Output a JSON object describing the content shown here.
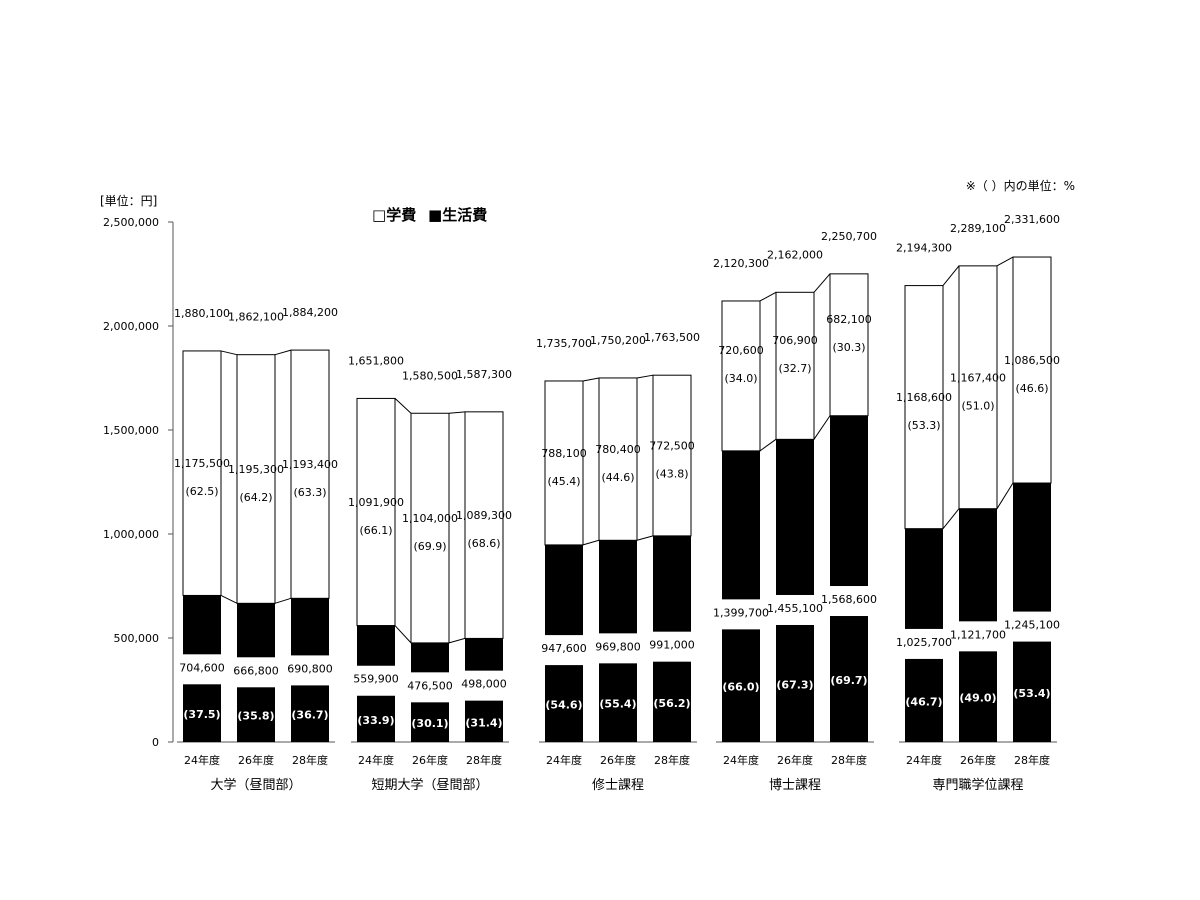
{
  "chart_data": {
    "type": "bar",
    "stacked": true,
    "unit_label": "[単位：円]",
    "percent_note": "※（ ）内の単位：%",
    "legend": {
      "placement": "top-center",
      "items": [
        {
          "name": "学費",
          "symbol": "□",
          "color": "#ffffff"
        },
        {
          "name": "生活費",
          "symbol": "■",
          "color": "#000000"
        }
      ]
    },
    "ylim": [
      0,
      2500000
    ],
    "yticks": [
      {
        "value": 0,
        "label": "0"
      },
      {
        "value": 500000,
        "label": "500,000"
      },
      {
        "value": 1000000,
        "label": "1,000,000"
      },
      {
        "value": 1500000,
        "label": "1,500,000"
      },
      {
        "value": 2000000,
        "label": "2,000,000"
      },
      {
        "value": 2500000,
        "label": "2,500,000"
      }
    ],
    "groups": [
      {
        "name": "大学（昼間部）",
        "bars": [
          {
            "year": "24年度",
            "total": 1880100,
            "total_label": "1,880,100",
            "tuition": 1175500,
            "tuition_label": "1,175,500",
            "tuition_pct": "(62.5)",
            "living": 704600,
            "living_label": "704,600",
            "living_pct": "(37.5)"
          },
          {
            "year": "26年度",
            "total": 1862100,
            "total_label": "1,862,100",
            "tuition": 1195300,
            "tuition_label": "1,195,300",
            "tuition_pct": "(64.2)",
            "living": 666800,
            "living_label": "666,800",
            "living_pct": "(35.8)"
          },
          {
            "year": "28年度",
            "total": 1884200,
            "total_label": "1,884,200",
            "tuition": 1193400,
            "tuition_label": "1,193,400",
            "tuition_pct": "(63.3)",
            "living": 690800,
            "living_label": "690,800",
            "living_pct": "(36.7)"
          }
        ]
      },
      {
        "name": "短期大学（昼間部）",
        "bars": [
          {
            "year": "24年度",
            "total": 1651800,
            "total_label": "1,651,800",
            "tuition": 1091900,
            "tuition_label": "1,091,900",
            "tuition_pct": "(66.1)",
            "living": 559900,
            "living_label": "559,900",
            "living_pct": "(33.9)"
          },
          {
            "year": "26年度",
            "total": 1580500,
            "total_label": "1,580,500",
            "tuition": 1104000,
            "tuition_label": "1,104,000",
            "tuition_pct": "(69.9)",
            "living": 476500,
            "living_label": "476,500",
            "living_pct": "(30.1)"
          },
          {
            "year": "28年度",
            "total": 1587300,
            "total_label": "1,587,300",
            "tuition": 1089300,
            "tuition_label": "1,089,300",
            "tuition_pct": "(68.6)",
            "living": 498000,
            "living_label": "498,000",
            "living_pct": "(31.4)"
          }
        ]
      },
      {
        "name": "修士課程",
        "bars": [
          {
            "year": "24年度",
            "total": 1735700,
            "total_label": "1,735,700",
            "tuition": 788100,
            "tuition_label": "788,100",
            "tuition_pct": "(45.4)",
            "living": 947600,
            "living_label": "947,600",
            "living_pct": "(54.6)"
          },
          {
            "year": "26年度",
            "total": 1750200,
            "total_label": "1,750,200",
            "tuition": 780400,
            "tuition_label": "780,400",
            "tuition_pct": "(44.6)",
            "living": 969800,
            "living_label": "969,800",
            "living_pct": "(55.4)"
          },
          {
            "year": "28年度",
            "total": 1763500,
            "total_label": "1,763,500",
            "tuition": 772500,
            "tuition_label": "772,500",
            "tuition_pct": "(43.8)",
            "living": 991000,
            "living_label": "991,000",
            "living_pct": "(56.2)"
          }
        ]
      },
      {
        "name": "博士課程",
        "bars": [
          {
            "year": "24年度",
            "total": 2120300,
            "total_label": "2,120,300",
            "tuition": 720600,
            "tuition_label": "720,600",
            "tuition_pct": "(34.0)",
            "living": 1399700,
            "living_label": "1,399,700",
            "living_pct": "(66.0)"
          },
          {
            "year": "26年度",
            "total": 2162000,
            "total_label": "2,162,000",
            "tuition": 706900,
            "tuition_label": "706,900",
            "tuition_pct": "(32.7)",
            "living": 1455100,
            "living_label": "1,455,100",
            "living_pct": "(67.3)"
          },
          {
            "year": "28年度",
            "total": 2250700,
            "total_label": "2,250,700",
            "tuition": 682100,
            "tuition_label": "682,100",
            "tuition_pct": "(30.3)",
            "living": 1568600,
            "living_label": "1,568,600",
            "living_pct": "(69.7)"
          }
        ]
      },
      {
        "name": "専門職学位課程",
        "bars": [
          {
            "year": "24年度",
            "total": 2194300,
            "total_label": "2,194,300",
            "tuition": 1168600,
            "tuition_label": "1,168,600",
            "tuition_pct": "(53.3)",
            "living": 1025700,
            "living_label": "1,025,700",
            "living_pct": "(46.7)"
          },
          {
            "year": "26年度",
            "total": 2289100,
            "total_label": "2,289,100",
            "tuition": 1167400,
            "tuition_label": "1,167,400",
            "tuition_pct": "(51.0)",
            "living": 1121700,
            "living_label": "1,121,700",
            "living_pct": "(49.0)"
          },
          {
            "year": "28年度",
            "total": 2331600,
            "total_label": "2,331,600",
            "tuition": 1086500,
            "tuition_label": "1,086,500",
            "tuition_pct": "(46.6)",
            "living": 1245100,
            "living_label": "1,245,100",
            "living_pct": "(53.4)"
          }
        ]
      }
    ]
  }
}
